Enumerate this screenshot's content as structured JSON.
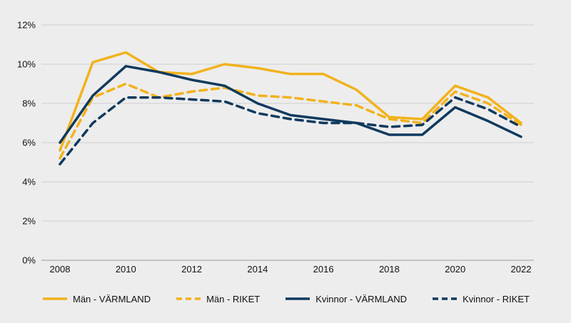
{
  "chart_data": {
    "type": "line",
    "x": [
      2008,
      2009,
      2010,
      2011,
      2012,
      2013,
      2014,
      2015,
      2016,
      2017,
      2018,
      2019,
      2020,
      2021,
      2022
    ],
    "x_tick_labels": [
      "2008",
      "2010",
      "2012",
      "2014",
      "2016",
      "2018",
      "2020",
      "2022"
    ],
    "y_tick_labels": [
      "0%",
      "2%",
      "4%",
      "6%",
      "8%",
      "10%",
      "12%"
    ],
    "ylim": [
      0,
      12
    ],
    "grid": "horizontal",
    "legend_position": "bottom",
    "series": [
      {
        "name": "Män - VÄRMLAND",
        "color": "#f2b21c",
        "dash": "solid",
        "values": [
          5.6,
          10.1,
          10.6,
          9.6,
          9.5,
          10.0,
          9.8,
          9.5,
          9.5,
          8.7,
          7.3,
          7.2,
          8.9,
          8.3,
          7.0
        ]
      },
      {
        "name": "Män - RIKET",
        "color": "#f2b21c",
        "dash": "dashed",
        "values": [
          5.2,
          8.3,
          9.0,
          8.3,
          8.6,
          8.8,
          8.4,
          8.3,
          8.1,
          7.9,
          7.2,
          7.0,
          8.6,
          8.0,
          6.9
        ]
      },
      {
        "name": "Kvinnor - VÄRMLAND",
        "color": "#0f3a5e",
        "dash": "solid",
        "values": [
          6.0,
          8.4,
          9.9,
          9.6,
          9.2,
          8.9,
          8.0,
          7.4,
          7.2,
          7.0,
          6.4,
          6.4,
          7.8,
          7.1,
          6.3
        ]
      },
      {
        "name": "Kvinnor - RIKET",
        "color": "#0f3a5e",
        "dash": "dashed",
        "values": [
          4.9,
          7.0,
          8.3,
          8.3,
          8.2,
          8.1,
          7.5,
          7.2,
          7.0,
          7.0,
          6.8,
          6.9,
          8.3,
          7.7,
          6.8
        ]
      }
    ]
  }
}
